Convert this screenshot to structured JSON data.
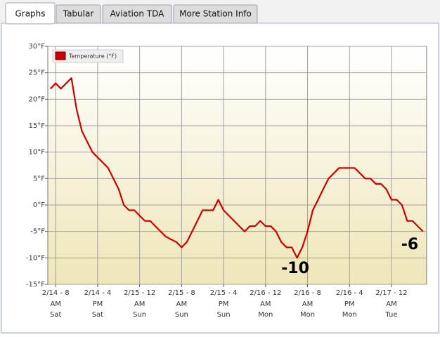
{
  "tabs": [
    "Graphs",
    "Tabular",
    "Aviation TDA",
    "More Station Info"
  ],
  "active_tab": 0,
  "chart_data": {
    "type": "line",
    "legend": "top-left",
    "grid": true,
    "series": [
      {
        "name": "Temperature (°F)",
        "color": "#cc0000",
        "x": [
          7,
          8,
          9,
          10,
          11,
          12,
          13,
          14,
          15,
          16,
          17,
          18,
          19,
          20,
          21,
          22,
          23,
          24,
          25,
          26,
          27,
          28,
          29,
          30,
          31,
          32,
          33,
          34,
          35,
          36,
          37,
          38,
          39,
          40,
          41,
          42,
          43,
          44,
          45,
          46,
          47,
          48,
          49,
          50,
          51,
          52,
          53,
          54,
          55,
          56,
          57,
          58,
          59,
          60,
          61,
          62,
          63,
          64,
          65,
          66,
          67,
          68,
          69,
          70,
          71,
          72,
          73,
          74,
          75,
          76,
          77,
          78
        ],
        "values": [
          22,
          23,
          22,
          23,
          24,
          18,
          14,
          12,
          10,
          9,
          8,
          7,
          5,
          3,
          0,
          -1,
          -1,
          -2,
          -3,
          -3,
          -4,
          -5,
          -6,
          -6.5,
          -7,
          -8,
          -7,
          -5,
          -3,
          -1,
          -1,
          -1,
          1,
          -1,
          -2,
          -3,
          -4,
          -5,
          -4,
          -4,
          -3,
          -4,
          -4,
          -5,
          -7,
          -8,
          -8,
          -10,
          -8,
          -5,
          -1,
          1,
          3,
          5,
          6,
          7,
          7,
          7,
          7,
          6,
          5,
          5,
          4,
          4,
          3,
          1,
          1,
          0,
          -3,
          -3,
          -4,
          -5
        ]
      }
    ],
    "xlim": [
      6.5,
      78.7
    ],
    "xticks": [
      {
        "value": 8,
        "label": "2/14 - 8",
        "ampm": "AM",
        "day": "Sat"
      },
      {
        "value": 16,
        "label": "2/14 - 4",
        "ampm": "PM",
        "day": "Sat"
      },
      {
        "value": 24,
        "label": "2/15 - 12",
        "ampm": "AM",
        "day": "Sun"
      },
      {
        "value": 32,
        "label": "2/15 - 8",
        "ampm": "AM",
        "day": "Sun"
      },
      {
        "value": 40,
        "label": "2/15 - 4",
        "ampm": "PM",
        "day": "Sun"
      },
      {
        "value": 48,
        "label": "2/16 - 12",
        "ampm": "AM",
        "day": "Mon"
      },
      {
        "value": 56,
        "label": "2/16 - 8",
        "ampm": "AM",
        "day": "Mon"
      },
      {
        "value": 64,
        "label": "2/16 - 4",
        "ampm": "PM",
        "day": "Mon"
      },
      {
        "value": 72,
        "label": "2/17 - 12",
        "ampm": "AM",
        "day": "Tue"
      }
    ],
    "ylim": [
      -15,
      30
    ],
    "yticks": [
      {
        "value": -15,
        "label": "-15°F"
      },
      {
        "value": -10,
        "label": "-10°F"
      },
      {
        "value": -5,
        "label": "-5°F"
      },
      {
        "value": 0,
        "label": "0°F"
      },
      {
        "value": 5,
        "label": "5°F"
      },
      {
        "value": 10,
        "label": "10°F"
      },
      {
        "value": 15,
        "label": "15°F"
      },
      {
        "value": 20,
        "label": "20°F"
      },
      {
        "value": 25,
        "label": "25°F"
      },
      {
        "value": 30,
        "label": "30°F"
      }
    ],
    "annotations": [
      "-10",
      "-6"
    ]
  }
}
